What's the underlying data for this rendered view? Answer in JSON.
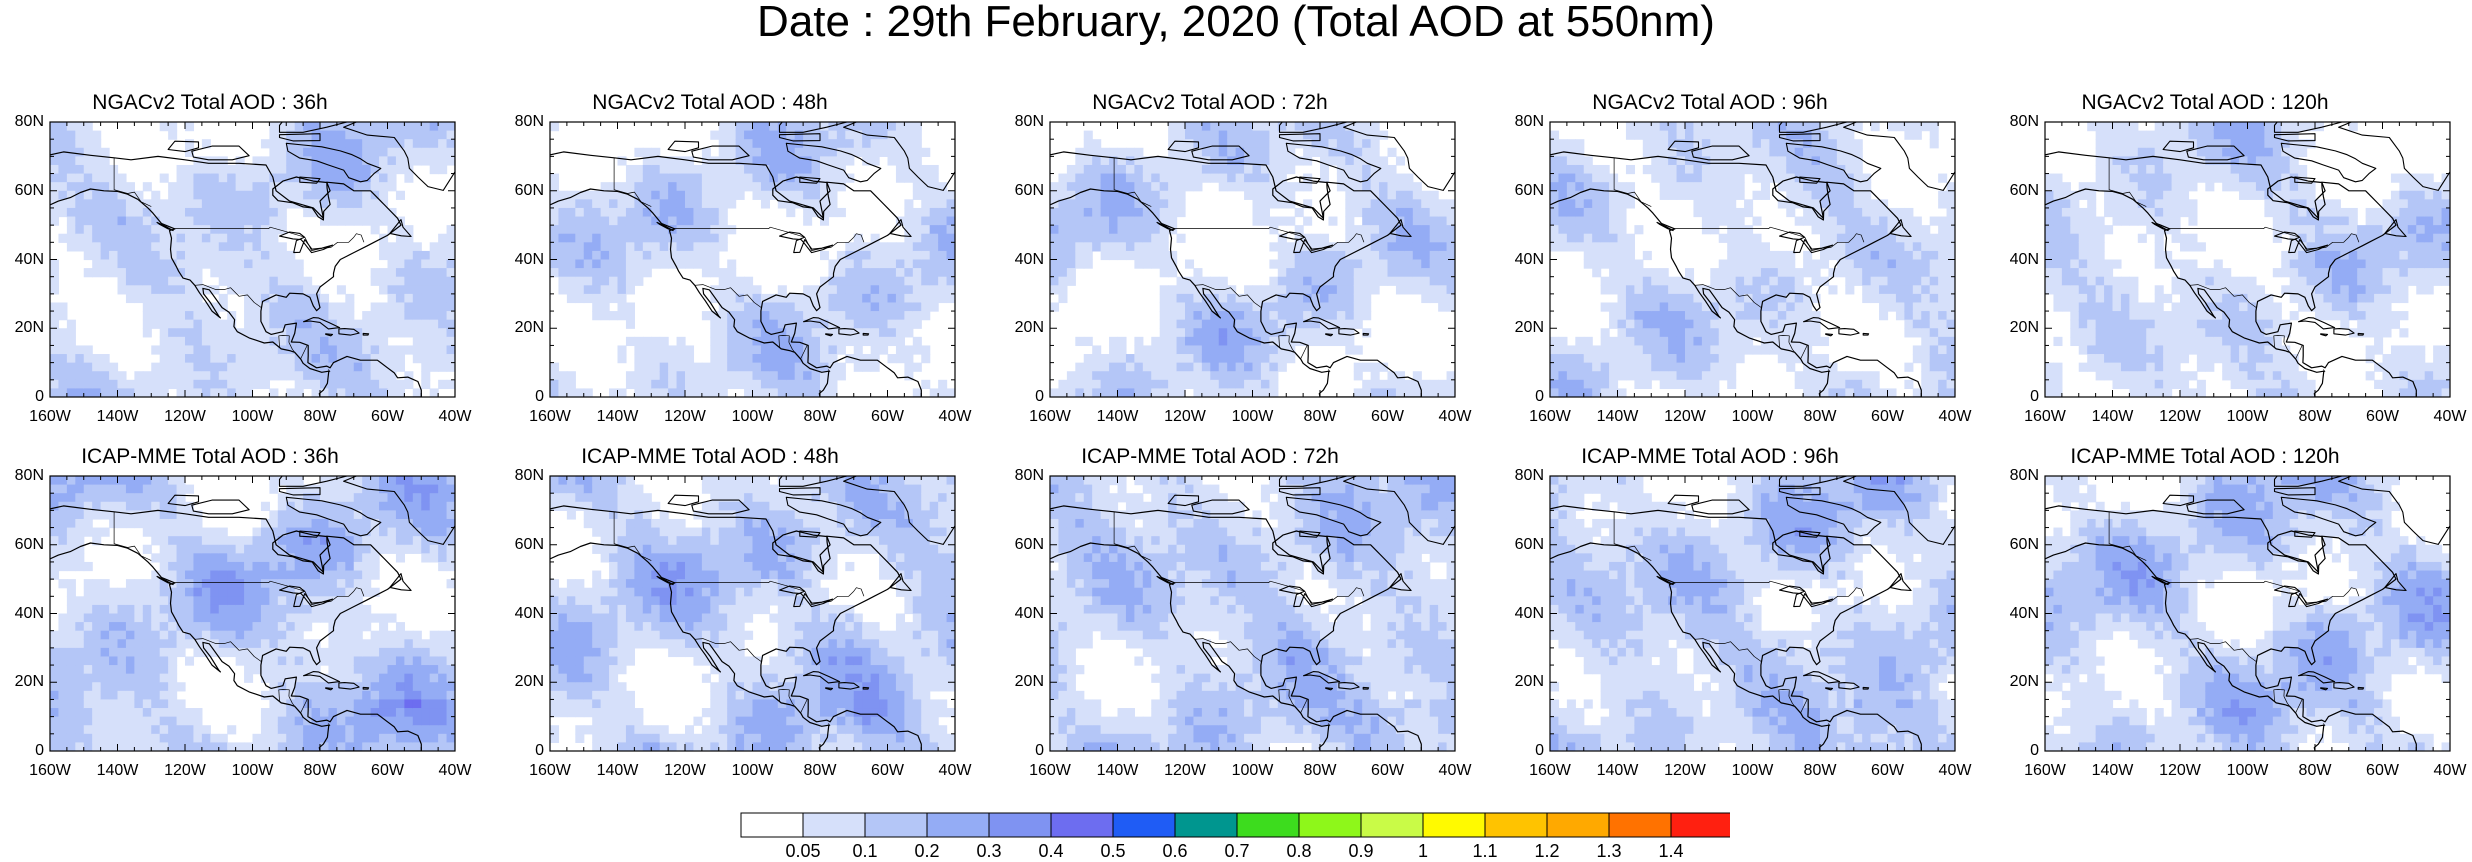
{
  "title": "Date : 29th February, 2020 (Total AOD at 550nm)",
  "panels": [
    {
      "title": "NGACv2 Total AOD : 36h",
      "model": "NGACv2",
      "lead": "36h",
      "intensity": 0.35
    },
    {
      "title": "NGACv2 Total AOD : 48h",
      "model": "NGACv2",
      "lead": "48h",
      "intensity": 0.3
    },
    {
      "title": "NGACv2 Total AOD : 72h",
      "model": "NGACv2",
      "lead": "72h",
      "intensity": 0.3
    },
    {
      "title": "NGACv2 Total AOD : 96h",
      "model": "NGACv2",
      "lead": "96h",
      "intensity": 0.28
    },
    {
      "title": "NGACv2 Total AOD : 120h",
      "model": "NGACv2",
      "lead": "120h",
      "intensity": 0.28
    },
    {
      "title": "ICAP-MME Total AOD : 36h",
      "model": "ICAP-MME",
      "lead": "36h",
      "intensity": 0.6
    },
    {
      "title": "ICAP-MME Total AOD : 48h",
      "model": "ICAP-MME",
      "lead": "48h",
      "intensity": 0.62
    },
    {
      "title": "ICAP-MME Total AOD : 72h",
      "model": "ICAP-MME",
      "lead": "72h",
      "intensity": 0.6
    },
    {
      "title": "ICAP-MME Total AOD : 96h",
      "model": "ICAP-MME",
      "lead": "96h",
      "intensity": 0.58
    },
    {
      "title": "ICAP-MME Total AOD : 120h",
      "model": "ICAP-MME",
      "lead": "120h",
      "intensity": 0.55
    }
  ],
  "axes": {
    "lat_labels": [
      "80N",
      "60N",
      "40N",
      "20N",
      "0"
    ],
    "lon_labels": [
      "160W",
      "140W",
      "120W",
      "100W",
      "80W",
      "60W",
      "40W"
    ],
    "lat_range": [
      0,
      80
    ],
    "lon_range": [
      -160,
      -40
    ]
  },
  "colorbar": {
    "labels": [
      "0.05",
      "0.1",
      "0.2",
      "0.3",
      "0.4",
      "0.5",
      "0.6",
      "0.7",
      "0.8",
      "0.9",
      "1",
      "1.1",
      "1.2",
      "1.3",
      "1.4"
    ],
    "colors": [
      "#ffffff",
      "#d6e0fa",
      "#b4c6f7",
      "#94acf5",
      "#7f93f2",
      "#6d6df0",
      "#1f5cf5",
      "#00968f",
      "#3ddc1e",
      "#8ef71a",
      "#c9fb47",
      "#fffa00",
      "#ffc300",
      "#ffa900",
      "#ff7200",
      "#ff2010"
    ]
  }
}
